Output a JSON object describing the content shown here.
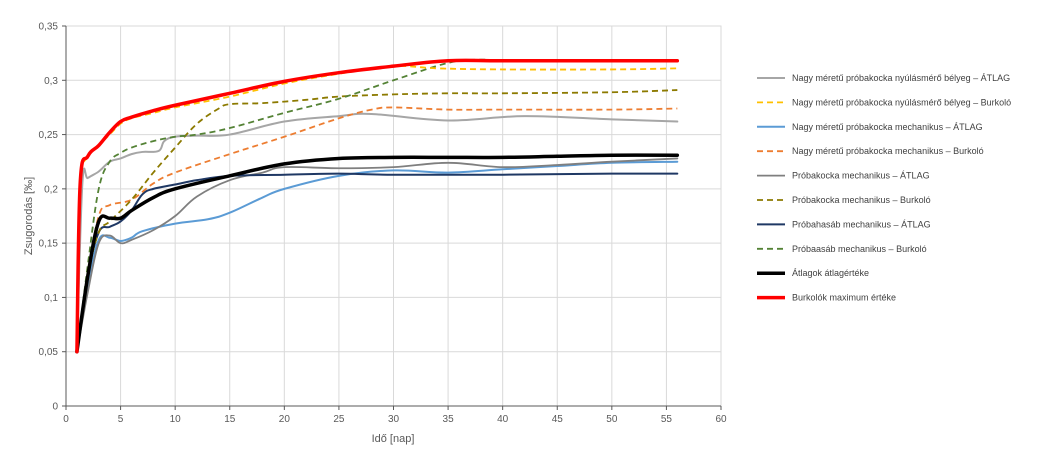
{
  "chart_data": {
    "type": "line",
    "title": "",
    "xlabel": "Idő [nap]",
    "ylabel": "Zsugorodás [‰]",
    "xlim": [
      0,
      60
    ],
    "ylim": [
      0,
      0.35
    ],
    "x_ticks": [
      "0",
      "5",
      "10",
      "15",
      "20",
      "25",
      "30",
      "35",
      "40",
      "45",
      "50",
      "55",
      "60"
    ],
    "y_ticks": [
      "0",
      "0,05",
      "0,1",
      "0,15",
      "0,2",
      "0,25",
      "0,3",
      "0,35"
    ],
    "grid": "both",
    "legend_position": "right",
    "series": [
      {
        "name": "Nagy méretű próbakocka nyúlásmérő bélyeg – ÁTLAG",
        "color": "#a6a6a6",
        "dash": "solid",
        "width": 2,
        "x": [
          1,
          1.5,
          2,
          3,
          4,
          5,
          6,
          7,
          8.5,
          9,
          10,
          12,
          15,
          20,
          25,
          28,
          35,
          42,
          50,
          56
        ],
        "y": [
          0.05,
          0.205,
          0.21,
          0.216,
          0.225,
          0.228,
          0.232,
          0.234,
          0.235,
          0.244,
          0.248,
          0.249,
          0.25,
          0.262,
          0.267,
          0.269,
          0.263,
          0.267,
          0.264,
          0.262
        ]
      },
      {
        "name": "Nagy méretű próbakocka nyúlásmérő bélyeg – Burkoló",
        "color": "#ffc000",
        "dash": "dashed",
        "width": 1.8,
        "x": [
          1,
          1.3,
          2,
          3,
          4,
          5,
          6,
          8,
          10,
          15,
          20,
          25,
          30,
          34,
          40,
          50,
          56
        ],
        "y": [
          0.05,
          0.2,
          0.23,
          0.24,
          0.25,
          0.26,
          0.265,
          0.27,
          0.275,
          0.285,
          0.297,
          0.306,
          0.313,
          0.311,
          0.31,
          0.31,
          0.311
        ]
      },
      {
        "name": "Nagy méretű próbakocka mechanikus – ÁTLAG",
        "color": "#5b9bd5",
        "dash": "solid",
        "width": 2,
        "x": [
          1,
          2,
          3,
          4,
          5,
          6,
          7,
          10,
          13,
          15,
          18,
          20,
          25,
          30,
          35,
          40,
          45,
          50,
          56
        ],
        "y": [
          0.05,
          0.11,
          0.153,
          0.155,
          0.152,
          0.155,
          0.161,
          0.168,
          0.172,
          0.178,
          0.192,
          0.2,
          0.212,
          0.217,
          0.215,
          0.218,
          0.221,
          0.224,
          0.225
        ]
      },
      {
        "name": "Nagy méretű próbakocka mechanikus – Burkoló",
        "color": "#ed7d31",
        "dash": "dashed",
        "width": 1.8,
        "x": [
          1,
          2,
          3,
          4,
          6,
          8,
          10,
          15,
          20,
          25,
          28,
          30,
          35,
          40,
          50,
          56
        ],
        "y": [
          0.05,
          0.12,
          0.175,
          0.185,
          0.19,
          0.205,
          0.215,
          0.232,
          0.248,
          0.265,
          0.273,
          0.275,
          0.273,
          0.273,
          0.273,
          0.274
        ]
      },
      {
        "name": "Próbakocka mechanikus – ÁTLAG",
        "color": "#7f7f7f",
        "dash": "solid",
        "width": 1.8,
        "x": [
          1,
          2,
          3,
          4,
          5,
          6,
          8,
          10,
          12,
          15,
          18,
          20,
          25,
          30,
          35,
          40,
          45,
          50,
          56
        ],
        "y": [
          0.05,
          0.105,
          0.15,
          0.157,
          0.15,
          0.153,
          0.162,
          0.175,
          0.193,
          0.208,
          0.215,
          0.22,
          0.219,
          0.22,
          0.224,
          0.22,
          0.222,
          0.225,
          0.228
        ]
      },
      {
        "name": "Próbakocka mechanikus – Burkoló",
        "color": "#8c7a00",
        "dash": "dashed",
        "width": 1.8,
        "x": [
          1,
          2,
          3,
          4,
          6,
          8,
          10,
          12,
          14,
          15,
          18,
          22,
          25,
          30,
          35,
          40,
          50,
          56
        ],
        "y": [
          0.05,
          0.12,
          0.16,
          0.17,
          0.19,
          0.215,
          0.238,
          0.26,
          0.274,
          0.278,
          0.279,
          0.282,
          0.285,
          0.287,
          0.288,
          0.288,
          0.289,
          0.291
        ]
      },
      {
        "name": "Próbahasáb mechanikus – ÁTLAG",
        "color": "#1f3864",
        "dash": "solid",
        "width": 2,
        "x": [
          1,
          2,
          3,
          4,
          5,
          6,
          7,
          8,
          10,
          12,
          15,
          20,
          25,
          30,
          40,
          50,
          56
        ],
        "y": [
          0.05,
          0.12,
          0.16,
          0.165,
          0.17,
          0.18,
          0.195,
          0.2,
          0.204,
          0.208,
          0.212,
          0.213,
          0.214,
          0.213,
          0.213,
          0.214,
          0.214
        ]
      },
      {
        "name": "Próbaasáb mechanikus – Burkoló",
        "color": "#548235",
        "dash": "dashed",
        "width": 1.8,
        "x": [
          1,
          2,
          3,
          4,
          5,
          6,
          8,
          10,
          12,
          15,
          20,
          25,
          30,
          35,
          38,
          40,
          50,
          56
        ],
        "y": [
          0.05,
          0.13,
          0.2,
          0.225,
          0.233,
          0.238,
          0.244,
          0.248,
          0.25,
          0.256,
          0.27,
          0.283,
          0.3,
          0.316,
          0.319,
          0.318,
          0.318,
          0.318
        ]
      },
      {
        "name": "Átlagok átlagértéke",
        "color": "#000000",
        "dash": "solid",
        "width": 3.5,
        "x": [
          1,
          2,
          3,
          4,
          5,
          6,
          8,
          10,
          15,
          20,
          25,
          30,
          35,
          40,
          45,
          50,
          56
        ],
        "y": [
          0.05,
          0.12,
          0.17,
          0.173,
          0.173,
          0.18,
          0.192,
          0.2,
          0.212,
          0.223,
          0.228,
          0.229,
          0.229,
          0.229,
          0.23,
          0.231,
          0.231
        ]
      },
      {
        "name": "Burkolók maximum értéke",
        "color": "#ff0000",
        "dash": "solid",
        "width": 3.5,
        "x": [
          1,
          1.3,
          2,
          3,
          4,
          5,
          6,
          8,
          10,
          15,
          20,
          25,
          30,
          35,
          40,
          50,
          56
        ],
        "y": [
          0.05,
          0.205,
          0.23,
          0.24,
          0.252,
          0.262,
          0.266,
          0.272,
          0.277,
          0.288,
          0.299,
          0.307,
          0.313,
          0.318,
          0.318,
          0.318,
          0.318
        ]
      }
    ]
  }
}
